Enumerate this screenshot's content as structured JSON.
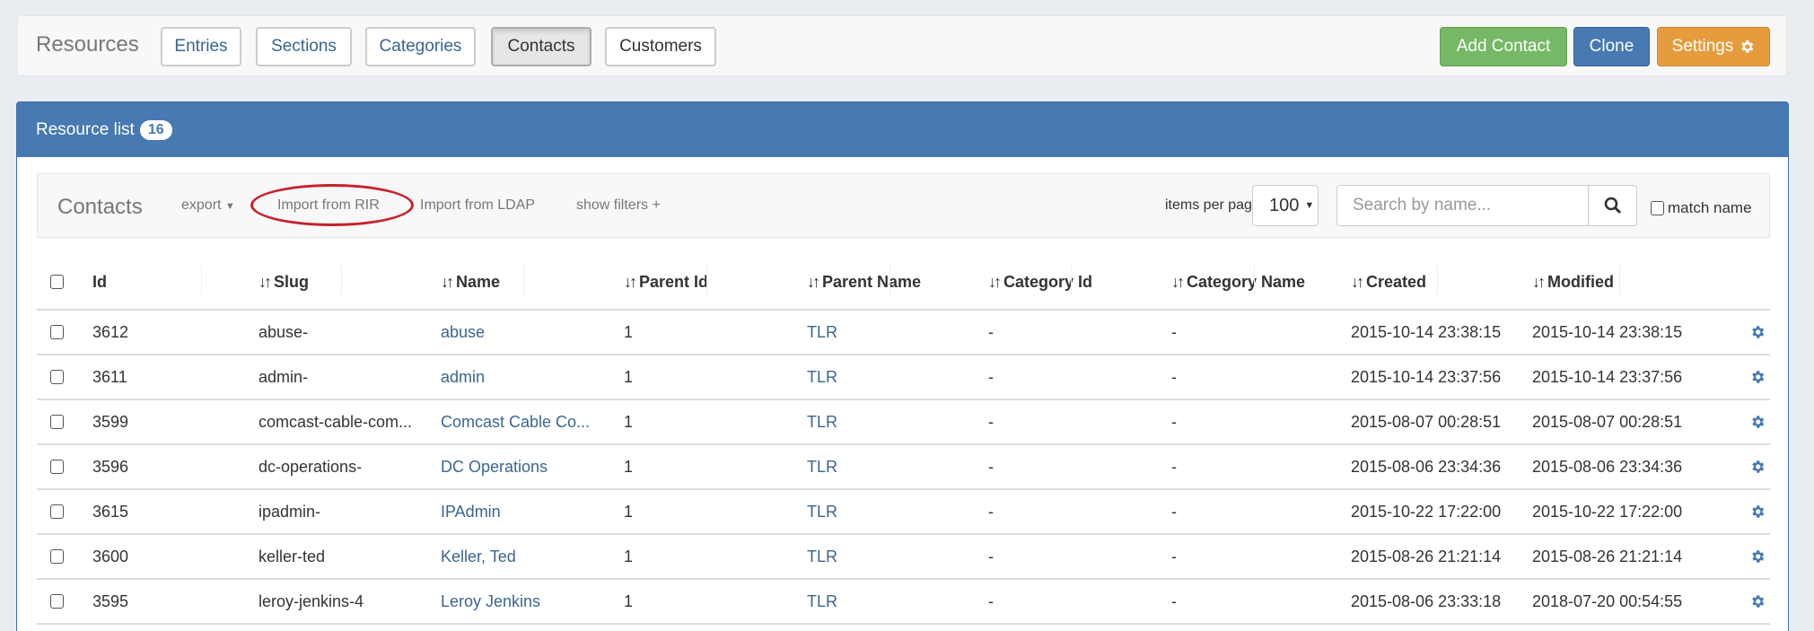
{
  "topbar": {
    "brand": "Resources",
    "nav": [
      {
        "label": "Entries",
        "active": false
      },
      {
        "label": "Sections",
        "active": false
      },
      {
        "label": "Categories",
        "active": false
      },
      {
        "label": "Contacts",
        "active": true
      },
      {
        "label": "Customers",
        "active": false
      }
    ],
    "actions": {
      "add": "Add Contact",
      "clone": "Clone",
      "settings": "Settings"
    },
    "colors": {
      "add": "#76b865",
      "clone": "#4779b2",
      "settings": "#e69c3c"
    }
  },
  "panel": {
    "title": "Resource list",
    "count": "16"
  },
  "toolbar": {
    "title": "Contacts",
    "export": "export",
    "import_rir": "Import from RIR",
    "import_ldap": "Import from LDAP",
    "show_filters": "show filters +",
    "items_per_page_label": "items per page",
    "items_per_page": "100",
    "search_placeholder": "Search by name...",
    "match_name": "match name"
  },
  "table": {
    "columns": [
      "Id",
      "Slug",
      "Name",
      "Parent Id",
      "Parent Name",
      "Category Id",
      "Category Name",
      "Created",
      "Modified"
    ],
    "rows": [
      [
        "3612",
        "abuse-",
        "abuse",
        "1",
        "TLR",
        "-",
        "-",
        "2015-10-14 23:38:15",
        "2015-10-14 23:38:15"
      ],
      [
        "3611",
        "admin-",
        "admin",
        "1",
        "TLR",
        "-",
        "-",
        "2015-10-14 23:37:56",
        "2015-10-14 23:37:56"
      ],
      [
        "3599",
        "comcast-cable-com...",
        "Comcast Cable Co...",
        "1",
        "TLR",
        "-",
        "-",
        "2015-08-07 00:28:51",
        "2015-08-07 00:28:51"
      ],
      [
        "3596",
        "dc-operations-",
        "DC Operations",
        "1",
        "TLR",
        "-",
        "-",
        "2015-08-06 23:34:36",
        "2015-08-06 23:34:36"
      ],
      [
        "3615",
        "ipadmin-",
        "IPAdmin",
        "1",
        "TLR",
        "-",
        "-",
        "2015-10-22 17:22:00",
        "2015-10-22 17:22:00"
      ],
      [
        "3600",
        "keller-ted",
        "Keller, Ted",
        "1",
        "TLR",
        "-",
        "-",
        "2015-08-26 21:21:14",
        "2015-08-26 21:21:14"
      ],
      [
        "3595",
        "leroy-jenkins-4",
        "Leroy Jenkins",
        "1",
        "TLR",
        "-",
        "-",
        "2015-08-06 23:33:18",
        "2018-07-20 00:54:55"
      ]
    ]
  },
  "icons": {
    "settings": "gear-icon",
    "search": "search-icon",
    "sort": "sort-arrows-icon",
    "row_action": "gear-icon"
  }
}
